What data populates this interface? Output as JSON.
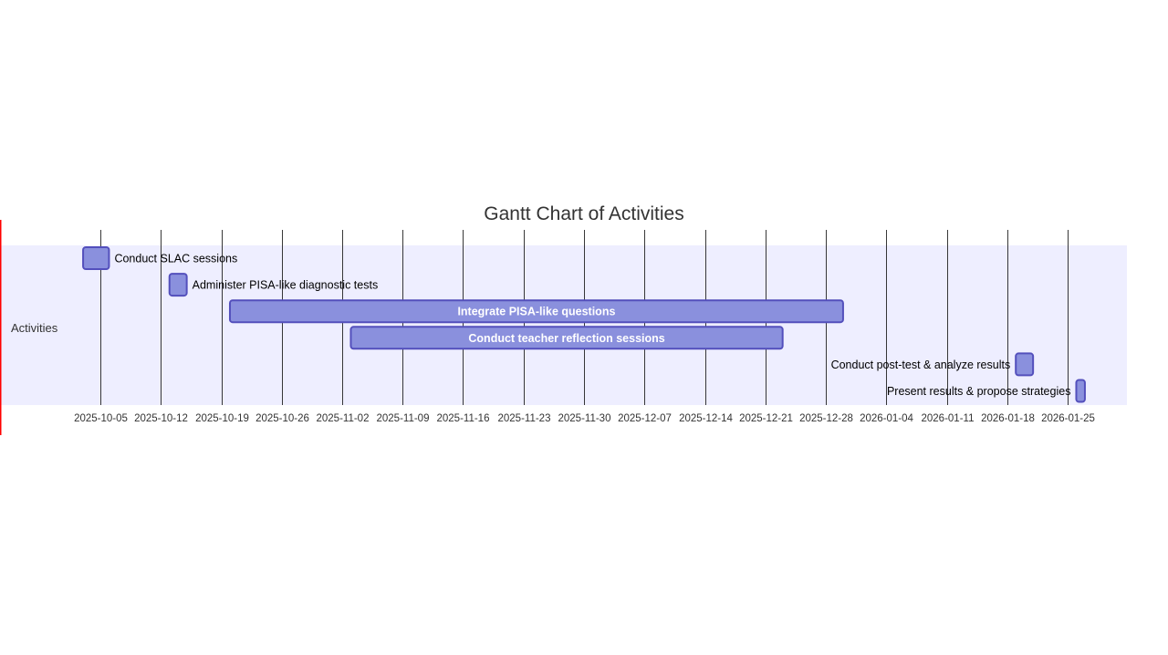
{
  "chart_data": {
    "type": "gantt",
    "title": "Gantt Chart of Activities",
    "section": "Activities",
    "x_range": [
      "2025-09-19",
      "2026-01-31"
    ],
    "tick_labels": [
      "2025-10-05",
      "2025-10-12",
      "2025-10-19",
      "2025-10-26",
      "2025-11-02",
      "2025-11-09",
      "2025-11-16",
      "2025-11-23",
      "2025-11-30",
      "2025-12-07",
      "2025-12-14",
      "2025-12-21",
      "2025-12-28",
      "2026-01-04",
      "2026-01-11",
      "2026-01-18",
      "2026-01-25"
    ],
    "tasks": [
      {
        "label": "Conduct SLAC sessions",
        "start": "2025-10-03",
        "end": "2025-10-06"
      },
      {
        "label": "Administer PISA-like diagnostic tests",
        "start": "2025-10-13",
        "end": "2025-10-15"
      },
      {
        "label": "Integrate PISA-like questions",
        "start": "2025-10-20",
        "end": "2025-12-30"
      },
      {
        "label": "Conduct teacher reflection sessions",
        "start": "2025-11-03",
        "end": "2025-12-23"
      },
      {
        "label": "Conduct post-test & analyze results",
        "start": "2026-01-19",
        "end": "2026-01-21"
      },
      {
        "label": "Present results & propose strategies",
        "start": "2026-01-26",
        "end": "2026-01-27"
      }
    ],
    "colors": {
      "section_bg": "#eeeeff",
      "bar_fill": "#8a90dd",
      "bar_stroke": "#534fbc",
      "grid": "#222222",
      "today_marker": "#ff0000"
    }
  }
}
